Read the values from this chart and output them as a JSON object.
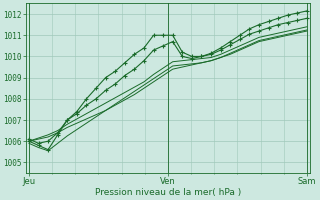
{
  "bg_color": "#cde8e0",
  "plot_bg_color": "#cde8e0",
  "grid_color": "#a0c8ba",
  "line_color": "#1a6b2a",
  "ylabel_ticks": [
    1005,
    1006,
    1007,
    1008,
    1009,
    1010,
    1011,
    1012
  ],
  "xtick_labels": [
    "Jeu",
    "Ven",
    "Sam"
  ],
  "xtick_positions": [
    0.0,
    0.5,
    1.0
  ],
  "xlabel": "Pression niveau de la mer( hPa )",
  "ylim": [
    1004.5,
    1012.5
  ],
  "xlim": [
    -0.01,
    1.01
  ],
  "series": [
    [
      1006.0,
      1005.8,
      1005.6,
      1006.3,
      1007.0,
      1007.4,
      1008.0,
      1008.5,
      1009.0,
      1009.3,
      1009.7,
      1010.1,
      1010.4,
      1011.0,
      1011.0,
      1011.0,
      1010.2,
      1010.0,
      1010.0,
      1010.15,
      1010.4,
      1010.7,
      1011.0,
      1011.3,
      1011.5,
      1011.65,
      1011.8,
      1011.95,
      1012.05,
      1012.15
    ],
    [
      1006.1,
      1005.9,
      1006.0,
      1006.4,
      1007.0,
      1007.3,
      1007.7,
      1008.0,
      1008.4,
      1008.7,
      1009.1,
      1009.4,
      1009.8,
      1010.3,
      1010.5,
      1010.7,
      1010.0,
      1009.9,
      1010.0,
      1010.1,
      1010.3,
      1010.55,
      1010.8,
      1011.05,
      1011.2,
      1011.35,
      1011.5,
      1011.6,
      1011.7,
      1011.8
    ],
    [
      1006.0,
      1006.15,
      1006.3,
      1006.5,
      1006.8,
      1007.05,
      1007.3,
      1007.55,
      1007.8,
      1008.05,
      1008.3,
      1008.55,
      1008.8,
      1009.15,
      1009.45,
      1009.75,
      1009.8,
      1009.85,
      1009.9,
      1009.95,
      1010.1,
      1010.3,
      1010.5,
      1010.7,
      1010.9,
      1011.0,
      1011.1,
      1011.2,
      1011.3,
      1011.4
    ],
    [
      1006.0,
      1006.1,
      1006.2,
      1006.4,
      1006.65,
      1006.85,
      1007.05,
      1007.25,
      1007.45,
      1007.7,
      1007.95,
      1008.2,
      1008.5,
      1008.8,
      1009.1,
      1009.4,
      1009.5,
      1009.6,
      1009.7,
      1009.8,
      1009.95,
      1010.15,
      1010.35,
      1010.55,
      1010.75,
      1010.85,
      1010.95,
      1011.05,
      1011.15,
      1011.25
    ],
    [
      1005.9,
      1005.7,
      1005.55,
      1005.9,
      1006.25,
      1006.55,
      1006.85,
      1007.15,
      1007.45,
      1007.75,
      1008.05,
      1008.35,
      1008.65,
      1008.95,
      1009.25,
      1009.55,
      1009.6,
      1009.65,
      1009.7,
      1009.8,
      1009.95,
      1010.1,
      1010.3,
      1010.5,
      1010.7,
      1010.8,
      1010.9,
      1011.0,
      1011.1,
      1011.2
    ]
  ]
}
